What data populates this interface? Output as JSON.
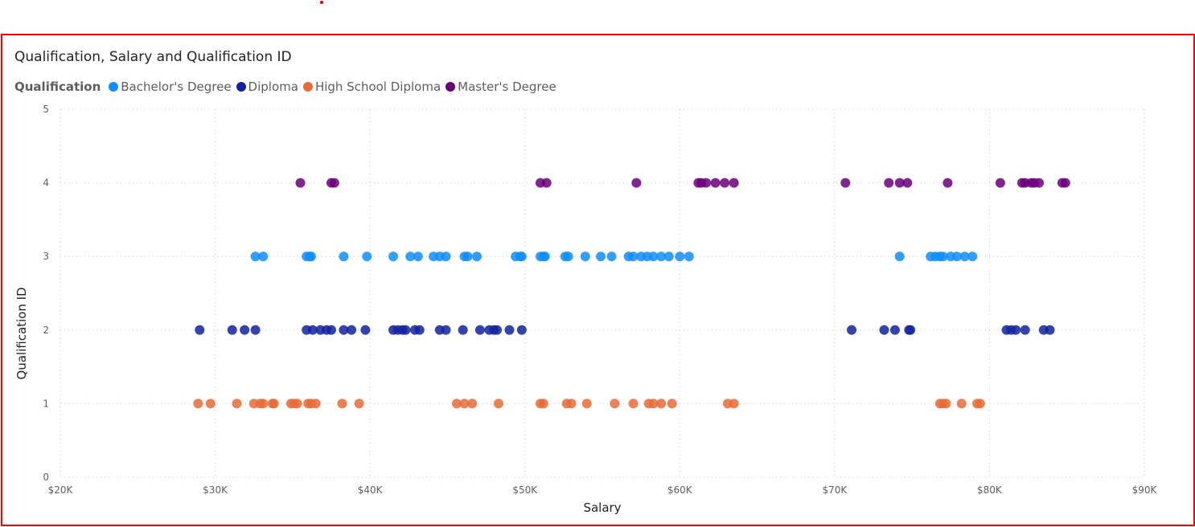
{
  "chart_data": {
    "type": "scatter",
    "title": "Qualification, Salary and Qualification ID",
    "legend_title": "Qualification",
    "xlabel": "Salary",
    "ylabel": "Qualification ID",
    "xlim": [
      20000,
      90000
    ],
    "ylim": [
      0,
      5
    ],
    "x_ticks": [
      "$20K",
      "$30K",
      "$40K",
      "$50K",
      "$60K",
      "$70K",
      "$80K",
      "$90K"
    ],
    "y_ticks": [
      "0",
      "1",
      "2",
      "3",
      "4",
      "5"
    ],
    "grid": true,
    "legend_position": "top-left",
    "series": [
      {
        "name": "Bachelor's Degree",
        "color": "#118DFF",
        "y": 3,
        "x": [
          32600,
          33100,
          35900,
          36100,
          36200,
          38300,
          39800,
          41500,
          42600,
          43100,
          44100,
          44500,
          44900,
          46100,
          46300,
          46900,
          49400,
          49700,
          49800,
          51000,
          51200,
          51300,
          52600,
          52800,
          53900,
          54900,
          55600,
          56700,
          57000,
          57500,
          57900,
          58300,
          58800,
          59300,
          60000,
          60600,
          74200,
          76200,
          76500,
          76800,
          77000,
          77500,
          77900,
          78400,
          78900
        ]
      },
      {
        "name": "Diploma",
        "color": "#12239E",
        "y": 2,
        "x": [
          29000,
          31100,
          31900,
          32600,
          35900,
          36300,
          36800,
          37200,
          37500,
          38300,
          38800,
          39700,
          41500,
          41800,
          42100,
          42300,
          42900,
          43200,
          44500,
          44900,
          46000,
          47100,
          47700,
          48000,
          48200,
          49000,
          49800,
          71100,
          73200,
          73900,
          74800,
          74900,
          81100,
          81400,
          81700,
          82300,
          83500,
          83900
        ]
      },
      {
        "name": "High School Diploma",
        "color": "#E66C37",
        "y": 1,
        "x": [
          28900,
          29700,
          31400,
          32500,
          32900,
          33100,
          33700,
          33800,
          34900,
          35100,
          35300,
          36000,
          36200,
          36500,
          38200,
          39300,
          45600,
          46100,
          46600,
          48300,
          51000,
          51200,
          52700,
          53000,
          54000,
          55800,
          57000,
          58000,
          58300,
          58800,
          59500,
          63100,
          63500,
          76800,
          77000,
          77200,
          78200,
          79200,
          79400
        ]
      },
      {
        "name": "Master's Degree",
        "color": "#6B007B",
        "y": 4,
        "x": [
          35500,
          37500,
          37700,
          51000,
          51400,
          57200,
          61200,
          61400,
          61700,
          62300,
          62900,
          63500,
          70700,
          73500,
          74200,
          74700,
          77300,
          80700,
          82100,
          82300,
          82700,
          82900,
          83200,
          84700,
          84900
        ]
      }
    ]
  }
}
